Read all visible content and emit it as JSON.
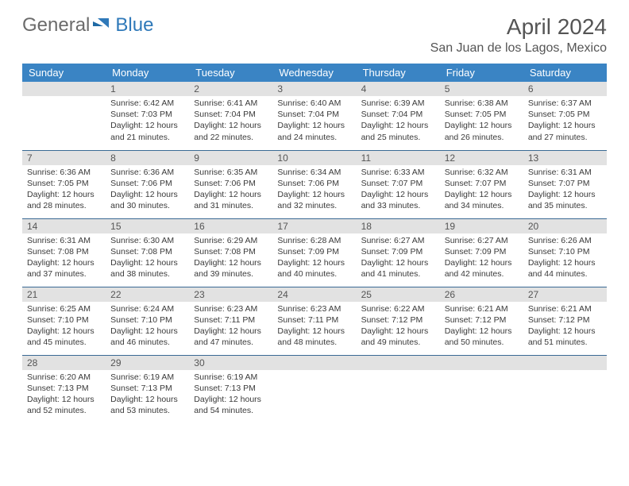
{
  "logo": {
    "general": "General",
    "blue": "Blue"
  },
  "title": "April 2024",
  "location": "San Juan de los Lagos, Mexico",
  "colors": {
    "header_bg": "#3a84c4",
    "header_text": "#ffffff",
    "daynum_bg": "#e2e2e2",
    "rule": "#3a6a94",
    "logo_gray": "#6b6b6b",
    "logo_blue": "#2f79b9"
  },
  "dow": [
    "Sunday",
    "Monday",
    "Tuesday",
    "Wednesday",
    "Thursday",
    "Friday",
    "Saturday"
  ],
  "weeks": [
    [
      {
        "n": "",
        "sunrise": "",
        "sunset": "",
        "daylight1": "",
        "daylight2": ""
      },
      {
        "n": "1",
        "sunrise": "Sunrise: 6:42 AM",
        "sunset": "Sunset: 7:03 PM",
        "daylight1": "Daylight: 12 hours",
        "daylight2": "and 21 minutes."
      },
      {
        "n": "2",
        "sunrise": "Sunrise: 6:41 AM",
        "sunset": "Sunset: 7:04 PM",
        "daylight1": "Daylight: 12 hours",
        "daylight2": "and 22 minutes."
      },
      {
        "n": "3",
        "sunrise": "Sunrise: 6:40 AM",
        "sunset": "Sunset: 7:04 PM",
        "daylight1": "Daylight: 12 hours",
        "daylight2": "and 24 minutes."
      },
      {
        "n": "4",
        "sunrise": "Sunrise: 6:39 AM",
        "sunset": "Sunset: 7:04 PM",
        "daylight1": "Daylight: 12 hours",
        "daylight2": "and 25 minutes."
      },
      {
        "n": "5",
        "sunrise": "Sunrise: 6:38 AM",
        "sunset": "Sunset: 7:05 PM",
        "daylight1": "Daylight: 12 hours",
        "daylight2": "and 26 minutes."
      },
      {
        "n": "6",
        "sunrise": "Sunrise: 6:37 AM",
        "sunset": "Sunset: 7:05 PM",
        "daylight1": "Daylight: 12 hours",
        "daylight2": "and 27 minutes."
      }
    ],
    [
      {
        "n": "7",
        "sunrise": "Sunrise: 6:36 AM",
        "sunset": "Sunset: 7:05 PM",
        "daylight1": "Daylight: 12 hours",
        "daylight2": "and 28 minutes."
      },
      {
        "n": "8",
        "sunrise": "Sunrise: 6:36 AM",
        "sunset": "Sunset: 7:06 PM",
        "daylight1": "Daylight: 12 hours",
        "daylight2": "and 30 minutes."
      },
      {
        "n": "9",
        "sunrise": "Sunrise: 6:35 AM",
        "sunset": "Sunset: 7:06 PM",
        "daylight1": "Daylight: 12 hours",
        "daylight2": "and 31 minutes."
      },
      {
        "n": "10",
        "sunrise": "Sunrise: 6:34 AM",
        "sunset": "Sunset: 7:06 PM",
        "daylight1": "Daylight: 12 hours",
        "daylight2": "and 32 minutes."
      },
      {
        "n": "11",
        "sunrise": "Sunrise: 6:33 AM",
        "sunset": "Sunset: 7:07 PM",
        "daylight1": "Daylight: 12 hours",
        "daylight2": "and 33 minutes."
      },
      {
        "n": "12",
        "sunrise": "Sunrise: 6:32 AM",
        "sunset": "Sunset: 7:07 PM",
        "daylight1": "Daylight: 12 hours",
        "daylight2": "and 34 minutes."
      },
      {
        "n": "13",
        "sunrise": "Sunrise: 6:31 AM",
        "sunset": "Sunset: 7:07 PM",
        "daylight1": "Daylight: 12 hours",
        "daylight2": "and 35 minutes."
      }
    ],
    [
      {
        "n": "14",
        "sunrise": "Sunrise: 6:31 AM",
        "sunset": "Sunset: 7:08 PM",
        "daylight1": "Daylight: 12 hours",
        "daylight2": "and 37 minutes."
      },
      {
        "n": "15",
        "sunrise": "Sunrise: 6:30 AM",
        "sunset": "Sunset: 7:08 PM",
        "daylight1": "Daylight: 12 hours",
        "daylight2": "and 38 minutes."
      },
      {
        "n": "16",
        "sunrise": "Sunrise: 6:29 AM",
        "sunset": "Sunset: 7:08 PM",
        "daylight1": "Daylight: 12 hours",
        "daylight2": "and 39 minutes."
      },
      {
        "n": "17",
        "sunrise": "Sunrise: 6:28 AM",
        "sunset": "Sunset: 7:09 PM",
        "daylight1": "Daylight: 12 hours",
        "daylight2": "and 40 minutes."
      },
      {
        "n": "18",
        "sunrise": "Sunrise: 6:27 AM",
        "sunset": "Sunset: 7:09 PM",
        "daylight1": "Daylight: 12 hours",
        "daylight2": "and 41 minutes."
      },
      {
        "n": "19",
        "sunrise": "Sunrise: 6:27 AM",
        "sunset": "Sunset: 7:09 PM",
        "daylight1": "Daylight: 12 hours",
        "daylight2": "and 42 minutes."
      },
      {
        "n": "20",
        "sunrise": "Sunrise: 6:26 AM",
        "sunset": "Sunset: 7:10 PM",
        "daylight1": "Daylight: 12 hours",
        "daylight2": "and 44 minutes."
      }
    ],
    [
      {
        "n": "21",
        "sunrise": "Sunrise: 6:25 AM",
        "sunset": "Sunset: 7:10 PM",
        "daylight1": "Daylight: 12 hours",
        "daylight2": "and 45 minutes."
      },
      {
        "n": "22",
        "sunrise": "Sunrise: 6:24 AM",
        "sunset": "Sunset: 7:10 PM",
        "daylight1": "Daylight: 12 hours",
        "daylight2": "and 46 minutes."
      },
      {
        "n": "23",
        "sunrise": "Sunrise: 6:23 AM",
        "sunset": "Sunset: 7:11 PM",
        "daylight1": "Daylight: 12 hours",
        "daylight2": "and 47 minutes."
      },
      {
        "n": "24",
        "sunrise": "Sunrise: 6:23 AM",
        "sunset": "Sunset: 7:11 PM",
        "daylight1": "Daylight: 12 hours",
        "daylight2": "and 48 minutes."
      },
      {
        "n": "25",
        "sunrise": "Sunrise: 6:22 AM",
        "sunset": "Sunset: 7:12 PM",
        "daylight1": "Daylight: 12 hours",
        "daylight2": "and 49 minutes."
      },
      {
        "n": "26",
        "sunrise": "Sunrise: 6:21 AM",
        "sunset": "Sunset: 7:12 PM",
        "daylight1": "Daylight: 12 hours",
        "daylight2": "and 50 minutes."
      },
      {
        "n": "27",
        "sunrise": "Sunrise: 6:21 AM",
        "sunset": "Sunset: 7:12 PM",
        "daylight1": "Daylight: 12 hours",
        "daylight2": "and 51 minutes."
      }
    ],
    [
      {
        "n": "28",
        "sunrise": "Sunrise: 6:20 AM",
        "sunset": "Sunset: 7:13 PM",
        "daylight1": "Daylight: 12 hours",
        "daylight2": "and 52 minutes."
      },
      {
        "n": "29",
        "sunrise": "Sunrise: 6:19 AM",
        "sunset": "Sunset: 7:13 PM",
        "daylight1": "Daylight: 12 hours",
        "daylight2": "and 53 minutes."
      },
      {
        "n": "30",
        "sunrise": "Sunrise: 6:19 AM",
        "sunset": "Sunset: 7:13 PM",
        "daylight1": "Daylight: 12 hours",
        "daylight2": "and 54 minutes."
      },
      {
        "n": "",
        "sunrise": "",
        "sunset": "",
        "daylight1": "",
        "daylight2": ""
      },
      {
        "n": "",
        "sunrise": "",
        "sunset": "",
        "daylight1": "",
        "daylight2": ""
      },
      {
        "n": "",
        "sunrise": "",
        "sunset": "",
        "daylight1": "",
        "daylight2": ""
      },
      {
        "n": "",
        "sunrise": "",
        "sunset": "",
        "daylight1": "",
        "daylight2": ""
      }
    ]
  ]
}
